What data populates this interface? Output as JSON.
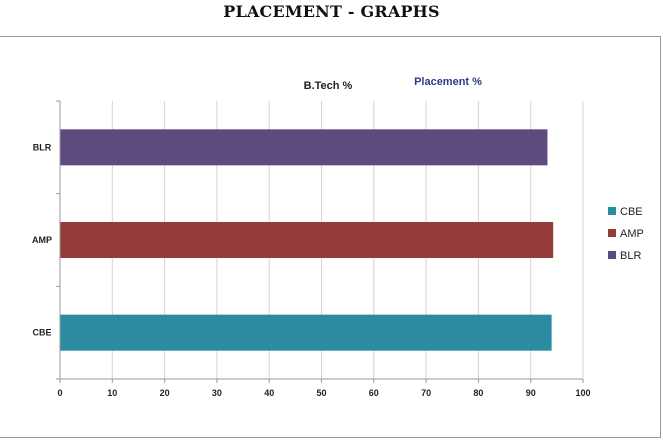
{
  "page": {
    "title": "PLACEMENT - GRAPHS"
  },
  "chart_data": {
    "type": "bar",
    "orientation": "horizontal",
    "title": "B.Tech %",
    "subtitle": "Placement %",
    "categories": [
      "CBE",
      "AMP",
      "BLR"
    ],
    "values": [
      94,
      94.3,
      93.2
    ],
    "colors": [
      "#2b8ba1",
      "#963a3a",
      "#5d4a7e"
    ],
    "xlim": [
      0,
      100
    ],
    "xticks": [
      0,
      10,
      20,
      30,
      40,
      50,
      60,
      70,
      80,
      90,
      100
    ],
    "grid": true,
    "legend": {
      "placement": "right",
      "entries": [
        "CBE",
        "AMP",
        "BLR"
      ]
    }
  }
}
